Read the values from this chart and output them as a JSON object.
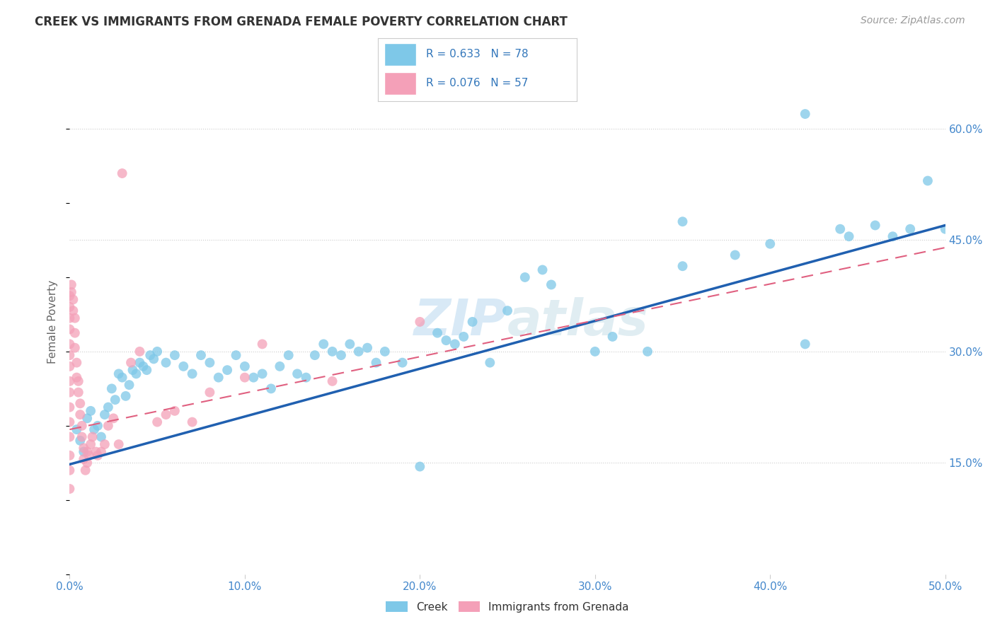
{
  "title": "CREEK VS IMMIGRANTS FROM GRENADA FEMALE POVERTY CORRELATION CHART",
  "source": "Source: ZipAtlas.com",
  "ylabel": "Female Poverty",
  "xlim": [
    0.0,
    0.5
  ],
  "ylim": [
    0.0,
    0.68
  ],
  "xtick_labels": [
    "0.0%",
    "10.0%",
    "20.0%",
    "30.0%",
    "40.0%",
    "50.0%"
  ],
  "xtick_vals": [
    0.0,
    0.1,
    0.2,
    0.3,
    0.4,
    0.5
  ],
  "ytick_labels": [
    "15.0%",
    "30.0%",
    "45.0%",
    "60.0%"
  ],
  "ytick_vals": [
    0.15,
    0.3,
    0.45,
    0.6
  ],
  "creek_R": 0.633,
  "creek_N": 78,
  "grenada_R": 0.076,
  "grenada_N": 57,
  "creek_color": "#7ec8e8",
  "grenada_color": "#f4a0b8",
  "creek_line_color": "#2060b0",
  "grenada_line_color": "#e06080",
  "creek_line_x0": 0.0,
  "creek_line_y0": 0.148,
  "creek_line_x1": 0.5,
  "creek_line_y1": 0.47,
  "grenada_line_x0": 0.0,
  "grenada_line_y0": 0.195,
  "grenada_line_x1": 0.5,
  "grenada_line_y1": 0.44,
  "creek_x": [
    0.004,
    0.006,
    0.008,
    0.01,
    0.012,
    0.014,
    0.016,
    0.018,
    0.02,
    0.022,
    0.024,
    0.026,
    0.028,
    0.03,
    0.032,
    0.034,
    0.036,
    0.038,
    0.04,
    0.042,
    0.044,
    0.046,
    0.048,
    0.05,
    0.055,
    0.06,
    0.065,
    0.07,
    0.075,
    0.08,
    0.085,
    0.09,
    0.095,
    0.1,
    0.105,
    0.11,
    0.115,
    0.12,
    0.125,
    0.13,
    0.135,
    0.14,
    0.145,
    0.15,
    0.155,
    0.16,
    0.165,
    0.17,
    0.175,
    0.18,
    0.19,
    0.2,
    0.21,
    0.215,
    0.22,
    0.225,
    0.23,
    0.24,
    0.25,
    0.26,
    0.27,
    0.275,
    0.3,
    0.31,
    0.33,
    0.35,
    0.38,
    0.4,
    0.42,
    0.44,
    0.445,
    0.46,
    0.47,
    0.48,
    0.49,
    0.5,
    0.42,
    0.35
  ],
  "creek_y": [
    0.195,
    0.18,
    0.165,
    0.21,
    0.22,
    0.195,
    0.2,
    0.185,
    0.215,
    0.225,
    0.25,
    0.235,
    0.27,
    0.265,
    0.24,
    0.255,
    0.275,
    0.27,
    0.285,
    0.28,
    0.275,
    0.295,
    0.29,
    0.3,
    0.285,
    0.295,
    0.28,
    0.27,
    0.295,
    0.285,
    0.265,
    0.275,
    0.295,
    0.28,
    0.265,
    0.27,
    0.25,
    0.28,
    0.295,
    0.27,
    0.265,
    0.295,
    0.31,
    0.3,
    0.295,
    0.31,
    0.3,
    0.305,
    0.285,
    0.3,
    0.285,
    0.145,
    0.325,
    0.315,
    0.31,
    0.32,
    0.34,
    0.285,
    0.355,
    0.4,
    0.41,
    0.39,
    0.3,
    0.32,
    0.3,
    0.415,
    0.43,
    0.445,
    0.31,
    0.465,
    0.455,
    0.47,
    0.455,
    0.465,
    0.53,
    0.465,
    0.62,
    0.475
  ],
  "grenada_x": [
    0.0,
    0.0,
    0.0,
    0.0,
    0.0,
    0.0,
    0.0,
    0.0,
    0.0,
    0.0,
    0.0,
    0.0,
    0.0,
    0.0,
    0.0,
    0.001,
    0.001,
    0.002,
    0.002,
    0.003,
    0.003,
    0.003,
    0.004,
    0.004,
    0.005,
    0.005,
    0.006,
    0.006,
    0.007,
    0.007,
    0.008,
    0.008,
    0.009,
    0.01,
    0.01,
    0.011,
    0.012,
    0.013,
    0.015,
    0.016,
    0.018,
    0.02,
    0.022,
    0.025,
    0.028,
    0.03,
    0.035,
    0.04,
    0.05,
    0.055,
    0.06,
    0.07,
    0.08,
    0.1,
    0.11,
    0.15,
    0.2
  ],
  "grenada_y": [
    0.375,
    0.36,
    0.345,
    0.33,
    0.31,
    0.295,
    0.28,
    0.26,
    0.245,
    0.225,
    0.205,
    0.185,
    0.16,
    0.14,
    0.115,
    0.39,
    0.38,
    0.37,
    0.355,
    0.345,
    0.325,
    0.305,
    0.285,
    0.265,
    0.26,
    0.245,
    0.23,
    0.215,
    0.2,
    0.185,
    0.17,
    0.155,
    0.14,
    0.165,
    0.15,
    0.16,
    0.175,
    0.185,
    0.165,
    0.16,
    0.165,
    0.175,
    0.2,
    0.21,
    0.175,
    0.54,
    0.285,
    0.3,
    0.205,
    0.215,
    0.22,
    0.205,
    0.245,
    0.265,
    0.31,
    0.26,
    0.34
  ]
}
